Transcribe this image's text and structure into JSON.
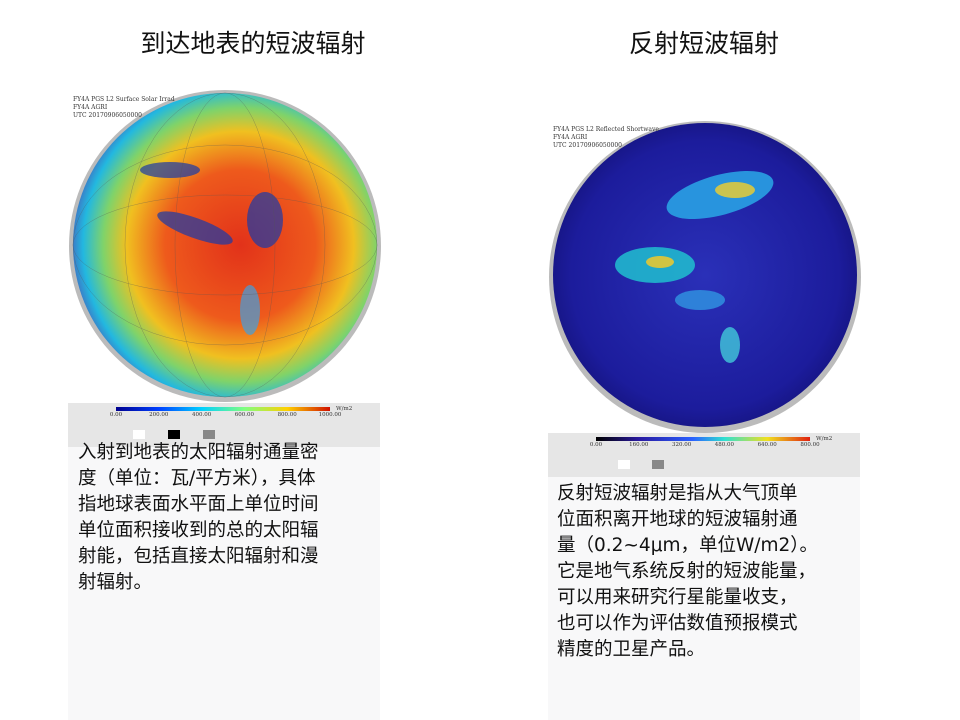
{
  "left": {
    "title": "到达地表的短波辐射",
    "image_header": [
      "FY4A PGS L2 Surface Solar Irrad",
      "FY4A AGRI",
      "UTC 20170906050000"
    ],
    "colorbar_ticks": [
      "0.00",
      "200.00",
      "400.00",
      "600.00",
      "800.00",
      "1000.00"
    ],
    "colorbar_unit": "W/m2",
    "description": [
      "入射到地表的太阳辐射通量密",
      "度（单位：瓦/平方米），具体",
      "指地球表面水平面上单位时间",
      "单位面积接收到的总的太阳辐",
      "射能，包括直接太阳辐射和漫",
      "射辐射。"
    ]
  },
  "right": {
    "title": "反射短波辐射",
    "image_header": [
      "FY4A PGS L2 Reflected Shortwave",
      "FY4A AGRI",
      "UTC 20170906050000"
    ],
    "colorbar_ticks": [
      "0.00",
      "160.00",
      "320.00",
      "480.00",
      "640.00",
      "800.00"
    ],
    "colorbar_unit": "W/m2",
    "description": [
      "反射短波辐射是指从大气顶单",
      "位面积离开地球的短波辐射通",
      "量（0.2~4μm，单位W/m2）。",
      "它是地气系统反射的短波能量，",
      "可以用来研究行星能量收支，",
      "也可以作为评估数值预报模式",
      "精度的卫星产品。"
    ]
  }
}
